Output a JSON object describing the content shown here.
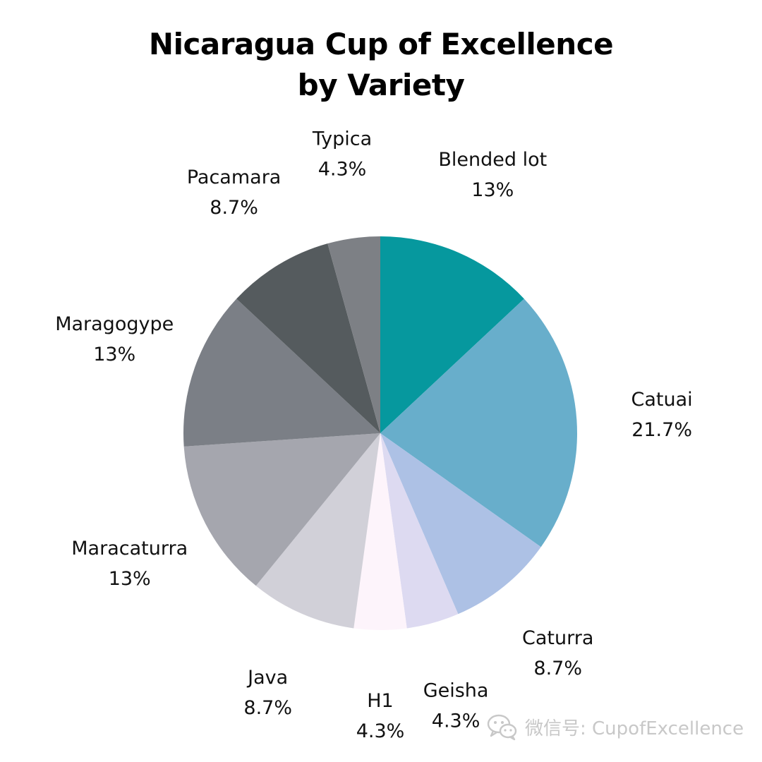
{
  "chart_data": {
    "type": "pie",
    "title_lines": [
      "Nicaragua Cup of Excellence",
      "by Variety"
    ],
    "start_angle_deg": 0,
    "direction": "clockwise",
    "slices": [
      {
        "label": "Blended lot",
        "value": 13,
        "value_text": "13%",
        "color": "#06989e"
      },
      {
        "label": "Catuai",
        "value": 21.7,
        "value_text": "21.7%",
        "color": "#68aecb"
      },
      {
        "label": "Caturra",
        "value": 8.7,
        "value_text": "8.7%",
        "color": "#adc1e5"
      },
      {
        "label": "Geisha",
        "value": 4.3,
        "value_text": "4.3%",
        "color": "#dddaf1"
      },
      {
        "label": "H1",
        "value": 4.3,
        "value_text": "4.3%",
        "color": "#fdf4fb"
      },
      {
        "label": "Java",
        "value": 8.7,
        "value_text": "8.7%",
        "color": "#d1d0d8"
      },
      {
        "label": "Maracaturra",
        "value": 13,
        "value_text": "13%",
        "color": "#a5a6ae"
      },
      {
        "label": "Maragogype",
        "value": 13,
        "value_text": "13%",
        "color": "#7b7f86"
      },
      {
        "label": "Pacamara",
        "value": 8.7,
        "value_text": "8.7%",
        "color": "#555b5e"
      },
      {
        "label": "Typica",
        "value": 4.3,
        "value_text": "4.3%",
        "color": "#7d8085"
      }
    ]
  },
  "watermark": {
    "text": "微信号: CupofExcellence",
    "icon": "wechat-icon",
    "color": "#c8c8c8"
  }
}
